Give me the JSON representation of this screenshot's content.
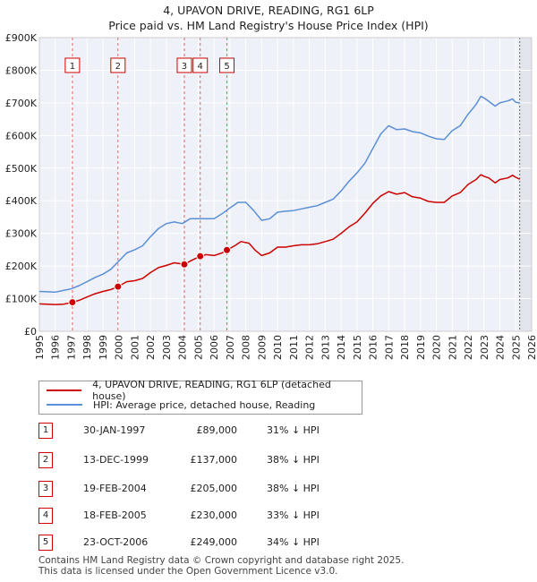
{
  "title": "4, UPAVON DRIVE, READING, RG1 6LP",
  "subtitle": "Price paid vs. HM Land Registry's House Price Index (HPI)",
  "chart_data": {
    "type": "line",
    "ylim": [
      0,
      900000
    ],
    "xlim": [
      1995,
      2026
    ],
    "y_ticks": [
      {
        "value": 0,
        "label": "£0"
      },
      {
        "value": 100000,
        "label": "£100K"
      },
      {
        "value": 200000,
        "label": "£200K"
      },
      {
        "value": 300000,
        "label": "£300K"
      },
      {
        "value": 400000,
        "label": "£400K"
      },
      {
        "value": 500000,
        "label": "£500K"
      },
      {
        "value": 600000,
        "label": "£600K"
      },
      {
        "value": 700000,
        "label": "£700K"
      },
      {
        "value": 800000,
        "label": "£800K"
      },
      {
        "value": 900000,
        "label": "£900K"
      }
    ],
    "x_ticks": [
      "1995",
      "1996",
      "1997",
      "1998",
      "1999",
      "2000",
      "2001",
      "2002",
      "2003",
      "2004",
      "2005",
      "2006",
      "2007",
      "2008",
      "2009",
      "2010",
      "2011",
      "2012",
      "2013",
      "2014",
      "2015",
      "2016",
      "2017",
      "2018",
      "2019",
      "2020",
      "2021",
      "2022",
      "2023",
      "2024",
      "2025",
      "2026"
    ],
    "grid": true,
    "series": [
      {
        "name": "4, UPAVON DRIVE, READING, RG1 6LP (detached house)",
        "color": "#cc0000",
        "points": [
          [
            1995.0,
            84000
          ],
          [
            1996.0,
            82000
          ],
          [
            1996.5,
            83000
          ],
          [
            1997.08,
            89000
          ],
          [
            1997.5,
            95000
          ],
          [
            1998.0,
            105000
          ],
          [
            1998.5,
            115000
          ],
          [
            1999.0,
            122000
          ],
          [
            1999.5,
            128000
          ],
          [
            1999.95,
            137000
          ],
          [
            2000.5,
            152000
          ],
          [
            2001.0,
            155000
          ],
          [
            2001.5,
            162000
          ],
          [
            2002.0,
            180000
          ],
          [
            2002.5,
            195000
          ],
          [
            2003.0,
            202000
          ],
          [
            2003.5,
            210000
          ],
          [
            2004.13,
            205000
          ],
          [
            2004.5,
            215000
          ],
          [
            2005.13,
            230000
          ],
          [
            2005.5,
            235000
          ],
          [
            2006.0,
            232000
          ],
          [
            2006.5,
            240000
          ],
          [
            2006.81,
            249000
          ],
          [
            2007.3,
            262000
          ],
          [
            2007.7,
            275000
          ],
          [
            2008.2,
            270000
          ],
          [
            2008.6,
            248000
          ],
          [
            2009.0,
            232000
          ],
          [
            2009.5,
            240000
          ],
          [
            2010.0,
            258000
          ],
          [
            2010.5,
            258000
          ],
          [
            2011.0,
            262000
          ],
          [
            2011.5,
            265000
          ],
          [
            2012.0,
            265000
          ],
          [
            2012.5,
            268000
          ],
          [
            2013.0,
            275000
          ],
          [
            2013.5,
            282000
          ],
          [
            2014.0,
            300000
          ],
          [
            2014.5,
            320000
          ],
          [
            2015.0,
            335000
          ],
          [
            2015.5,
            362000
          ],
          [
            2016.0,
            392000
          ],
          [
            2016.5,
            415000
          ],
          [
            2017.0,
            428000
          ],
          [
            2017.5,
            420000
          ],
          [
            2018.0,
            425000
          ],
          [
            2018.5,
            412000
          ],
          [
            2019.0,
            408000
          ],
          [
            2019.5,
            398000
          ],
          [
            2020.0,
            395000
          ],
          [
            2020.5,
            395000
          ],
          [
            2021.0,
            415000
          ],
          [
            2021.5,
            425000
          ],
          [
            2022.0,
            450000
          ],
          [
            2022.5,
            465000
          ],
          [
            2022.8,
            480000
          ],
          [
            2023.0,
            475000
          ],
          [
            2023.3,
            470000
          ],
          [
            2023.7,
            455000
          ],
          [
            2024.0,
            465000
          ],
          [
            2024.5,
            470000
          ],
          [
            2024.8,
            478000
          ],
          [
            2025.0,
            472000
          ],
          [
            2025.25,
            466000
          ]
        ]
      },
      {
        "name": "HPI: Average price, detached house, Reading",
        "color": "#5b8fd6",
        "points": [
          [
            1995.0,
            122000
          ],
          [
            1995.5,
            121000
          ],
          [
            1996.0,
            120000
          ],
          [
            1996.5,
            125000
          ],
          [
            1997.0,
            130000
          ],
          [
            1997.5,
            140000
          ],
          [
            1998.0,
            152000
          ],
          [
            1998.5,
            165000
          ],
          [
            1999.0,
            175000
          ],
          [
            1999.5,
            190000
          ],
          [
            2000.0,
            215000
          ],
          [
            2000.5,
            240000
          ],
          [
            2001.0,
            250000
          ],
          [
            2001.5,
            262000
          ],
          [
            2002.0,
            290000
          ],
          [
            2002.5,
            315000
          ],
          [
            2003.0,
            330000
          ],
          [
            2003.5,
            335000
          ],
          [
            2004.0,
            330000
          ],
          [
            2004.5,
            345000
          ],
          [
            2005.0,
            345000
          ],
          [
            2005.5,
            345000
          ],
          [
            2006.0,
            345000
          ],
          [
            2006.5,
            360000
          ],
          [
            2007.0,
            378000
          ],
          [
            2007.5,
            395000
          ],
          [
            2008.0,
            395000
          ],
          [
            2008.5,
            370000
          ],
          [
            2009.0,
            340000
          ],
          [
            2009.5,
            345000
          ],
          [
            2010.0,
            365000
          ],
          [
            2010.5,
            368000
          ],
          [
            2011.0,
            370000
          ],
          [
            2011.5,
            375000
          ],
          [
            2012.0,
            380000
          ],
          [
            2012.5,
            385000
          ],
          [
            2013.0,
            395000
          ],
          [
            2013.5,
            405000
          ],
          [
            2014.0,
            430000
          ],
          [
            2014.5,
            460000
          ],
          [
            2015.0,
            485000
          ],
          [
            2015.5,
            515000
          ],
          [
            2016.0,
            560000
          ],
          [
            2016.5,
            605000
          ],
          [
            2017.0,
            630000
          ],
          [
            2017.5,
            618000
          ],
          [
            2018.0,
            620000
          ],
          [
            2018.5,
            612000
          ],
          [
            2019.0,
            608000
          ],
          [
            2019.5,
            598000
          ],
          [
            2020.0,
            590000
          ],
          [
            2020.5,
            588000
          ],
          [
            2021.0,
            615000
          ],
          [
            2021.5,
            630000
          ],
          [
            2022.0,
            665000
          ],
          [
            2022.5,
            695000
          ],
          [
            2022.8,
            720000
          ],
          [
            2023.0,
            715000
          ],
          [
            2023.3,
            705000
          ],
          [
            2023.7,
            690000
          ],
          [
            2024.0,
            700000
          ],
          [
            2024.5,
            706000
          ],
          [
            2024.8,
            712000
          ],
          [
            2025.0,
            702000
          ],
          [
            2025.25,
            700000
          ]
        ]
      }
    ],
    "sales": [
      {
        "n": "1",
        "x": 1997.08,
        "price": 89000
      },
      {
        "n": "2",
        "x": 1999.95,
        "price": 137000
      },
      {
        "n": "3",
        "x": 2004.13,
        "price": 205000
      },
      {
        "n": "4",
        "x": 2005.13,
        "price": 230000
      },
      {
        "n": "5",
        "x": 2006.81,
        "price": 249000
      }
    ],
    "marker_label_value": 815000,
    "forecast_start": 2025.25
  },
  "legend": {
    "property": "4, UPAVON DRIVE, READING, RG1 6LP (detached house)",
    "hpi": "HPI: Average price, detached house, Reading",
    "property_color": "#cc0000",
    "hpi_color": "#5b8fd6"
  },
  "sales_table": [
    {
      "n": "1",
      "date": "30-JAN-1997",
      "price": "£89,000",
      "hpi": "31% ↓ HPI"
    },
    {
      "n": "2",
      "date": "13-DEC-1999",
      "price": "£137,000",
      "hpi": "38% ↓ HPI"
    },
    {
      "n": "3",
      "date": "19-FEB-2004",
      "price": "£205,000",
      "hpi": "38% ↓ HPI"
    },
    {
      "n": "4",
      "date": "18-FEB-2005",
      "price": "£230,000",
      "hpi": "33% ↓ HPI"
    },
    {
      "n": "5",
      "date": "23-OCT-2006",
      "price": "£249,000",
      "hpi": "34% ↓ HPI"
    }
  ],
  "footer": {
    "line1": "Contains HM Land Registry data © Crown copyright and database right 2025.",
    "line2": "This data is licensed under the Open Government Licence v3.0."
  }
}
